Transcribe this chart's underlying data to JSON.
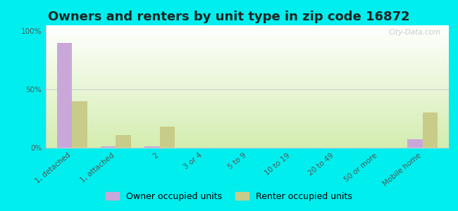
{
  "title": "Owners and renters by unit type in zip code 16872",
  "categories": [
    "1, detached",
    "1, attached",
    "2",
    "3 or 4",
    "5 to 9",
    "10 to 19",
    "20 to 49",
    "50 or more",
    "Mobile home"
  ],
  "owner_values": [
    90,
    1,
    1,
    0,
    0,
    0,
    0,
    0,
    7
  ],
  "renter_values": [
    40,
    11,
    18,
    0,
    0,
    0,
    0,
    0,
    30
  ],
  "owner_color": "#c9a8d9",
  "renter_color": "#c8cc88",
  "background_color": "#00eeee",
  "ylabel_ticks": [
    "0%",
    "50%",
    "100%"
  ],
  "yticks": [
    0,
    50,
    100
  ],
  "ylim": [
    0,
    105
  ],
  "bar_width": 0.35,
  "watermark": "City-Data.com",
  "legend_owner": "Owner occupied units",
  "legend_renter": "Renter occupied units",
  "title_fontsize": 13,
  "tick_fontsize": 7.5,
  "legend_fontsize": 9
}
